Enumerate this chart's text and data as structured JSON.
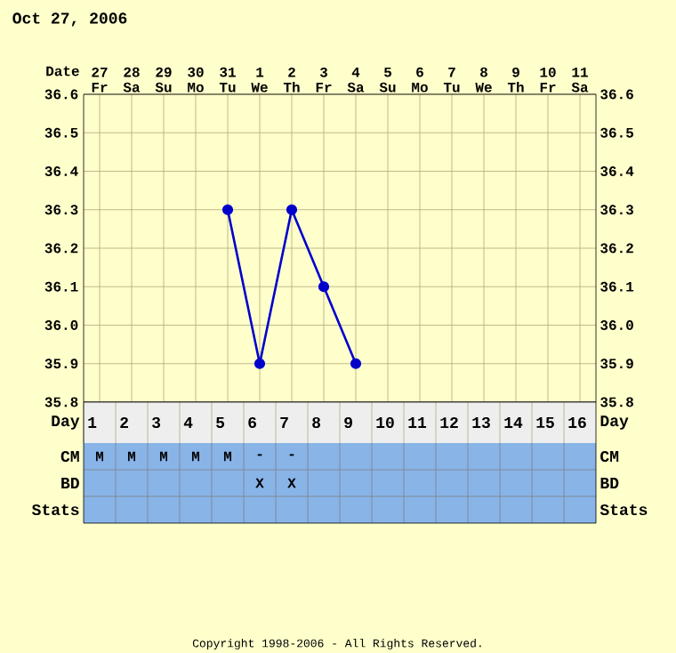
{
  "chart_data": [
    {
      "type": "line",
      "title": "Oct 27, 2006",
      "xlabel": "Date",
      "categories": [
        "27 Fr",
        "28 Sa",
        "29 Su",
        "30 Mo",
        "31 Tu",
        "1 We",
        "2 Th",
        "3 Fr",
        "4 Sa",
        "5 Su",
        "6 Mo",
        "7 Tu",
        "8 We",
        "9 Th",
        "10 Fr",
        "11 Sa"
      ],
      "series": [
        {
          "color": "#0000cc",
          "values": [
            null,
            null,
            null,
            null,
            36.3,
            35.9,
            36.3,
            36.1,
            35.9,
            null,
            null,
            null,
            null,
            null,
            null,
            null
          ]
        }
      ],
      "ylim": [
        35.8,
        36.6
      ],
      "yticks": [
        35.8,
        35.9,
        {
          "value": 36,
          "label": "36.0"
        },
        36.1,
        36.2,
        36.3,
        36.4,
        36.5,
        36.6
      ],
      "y2lim": [
        35.8,
        36.6
      ],
      "y2ticks": [
        35.8,
        35.9,
        {
          "value": 36,
          "label": "36.0"
        },
        36.1,
        36.2,
        36.3,
        36.4,
        36.5,
        36.6
      ],
      "grid": true,
      "marker": "circle",
      "line_style": "solid"
    },
    {
      "type": "heatmap",
      "xlabel": "Day",
      "categories": [
        "1",
        "2",
        "3",
        "4",
        "5",
        "6",
        "7",
        "8",
        "9",
        "10",
        "11",
        "12",
        "13",
        "14",
        "15",
        "16"
      ],
      "y_categories": [
        "CM",
        "BD",
        "Stats"
      ],
      "y2_categories": [
        "CM",
        "BD",
        "Stats"
      ],
      "cells": [
        [
          null,
          null,
          null,
          null,
          null,
          null,
          null,
          null,
          null,
          null,
          null,
          null,
          null,
          null,
          null,
          null
        ],
        [
          null,
          null,
          null,
          null,
          null,
          null,
          null,
          null,
          null,
          null,
          null,
          null,
          null,
          null,
          null,
          null
        ],
        [
          null,
          null,
          null,
          null,
          null,
          null,
          null,
          null,
          null,
          null,
          null,
          null,
          null,
          null,
          null,
          null
        ]
      ],
      "cell_labels": [
        [
          "M",
          "M",
          "M",
          "M",
          "M",
          "-",
          "-",
          null,
          null,
          null,
          null,
          null,
          null,
          null,
          null,
          null
        ],
        [
          null,
          null,
          null,
          null,
          null,
          "X",
          "X",
          null,
          null,
          null,
          null,
          null,
          null,
          null,
          null,
          null
        ],
        [
          null,
          null,
          null,
          null,
          null,
          null,
          null,
          null,
          null,
          null,
          null,
          null,
          null,
          null,
          null,
          null
        ]
      ],
      "annotations": [
        "Copyright 1998-2006 - All Rights Reserved."
      ]
    }
  ]
}
